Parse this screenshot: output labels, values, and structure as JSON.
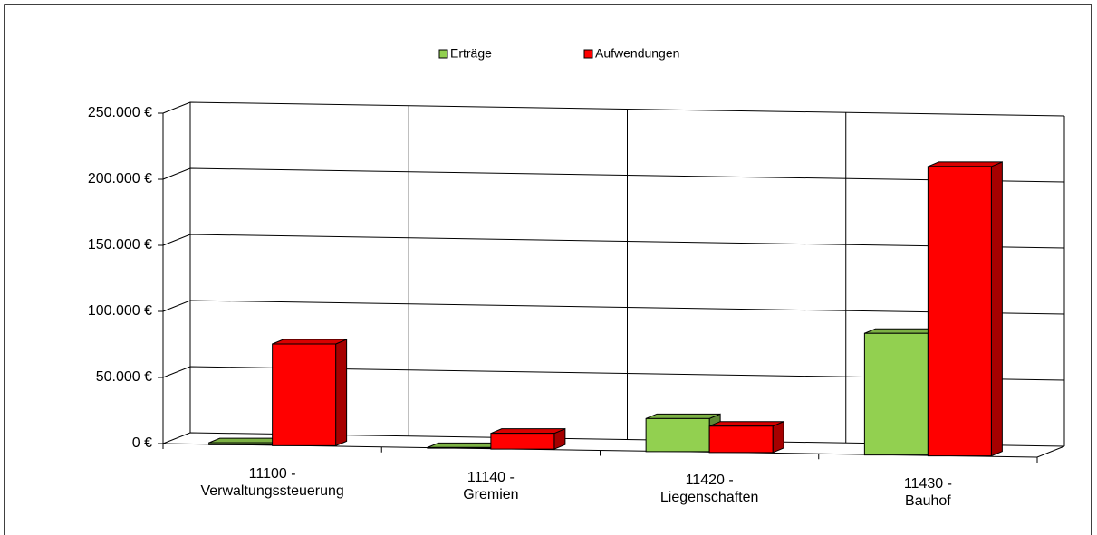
{
  "chart_data": {
    "type": "bar3d",
    "categories": [
      "11100 -\nVerwaltungssteuerung",
      "11140 -\nGremien",
      "11420 -\nLiegenschaften",
      "11430 -\nBauhof"
    ],
    "series": [
      {
        "name": "Erträge",
        "color": "#92d050",
        "values": [
          1500,
          500,
          25000,
          92000
        ]
      },
      {
        "name": "Aufwendungen",
        "color": "#ff0000",
        "values": [
          77000,
          12000,
          20000,
          219000
        ]
      }
    ],
    "ylim": [
      0,
      250000
    ],
    "yticks": [
      {
        "value": 0,
        "label": "0 €"
      },
      {
        "value": 50000,
        "label": "50.000 €"
      },
      {
        "value": 100000,
        "label": "100.000 €"
      },
      {
        "value": 150000,
        "label": "150.000 €"
      },
      {
        "value": 200000,
        "label": "200.000 €"
      },
      {
        "value": 250000,
        "label": "250.000 €"
      }
    ],
    "grid": true,
    "legend": "top"
  }
}
